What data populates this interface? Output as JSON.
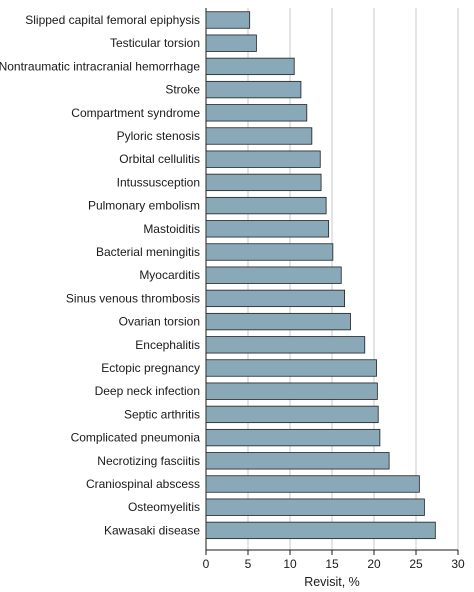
{
  "chart_data": {
    "type": "bar",
    "orientation": "horizontal",
    "categories": [
      "Slipped capital femoral epiphysis",
      "Testicular torsion",
      "Nontraumatic intracranial hemorrhage",
      "Stroke",
      "Compartment syndrome",
      "Pyloric stenosis",
      "Orbital cellulitis",
      "Intussusception",
      "Pulmonary embolism",
      "Mastoiditis",
      "Bacterial meningitis",
      "Myocarditis",
      "Sinus venous thrombosis",
      "Ovarian torsion",
      "Encephalitis",
      "Ectopic pregnancy",
      "Deep neck infection",
      "Septic arthritis",
      "Complicated pneumonia",
      "Necrotizing fasciitis",
      "Craniospinal abscess",
      "Osteomyelitis",
      "Kawasaki disease"
    ],
    "values": [
      5.2,
      6.0,
      10.5,
      11.3,
      12.0,
      12.6,
      13.6,
      13.7,
      14.3,
      14.6,
      15.1,
      16.1,
      16.5,
      17.2,
      18.9,
      20.3,
      20.4,
      20.5,
      20.7,
      21.8,
      25.4,
      26.0,
      27.3
    ],
    "xlabel": "Revisit, %",
    "ylabel": "",
    "title": "",
    "xlim": [
      0,
      30
    ],
    "xticks": [
      0,
      5,
      10,
      15,
      20,
      25,
      30
    ],
    "grid": true,
    "bar_color": "#8aa9b8",
    "bar_edge_color": "#1f1f1f",
    "grid_color": "#c8c8c8"
  }
}
